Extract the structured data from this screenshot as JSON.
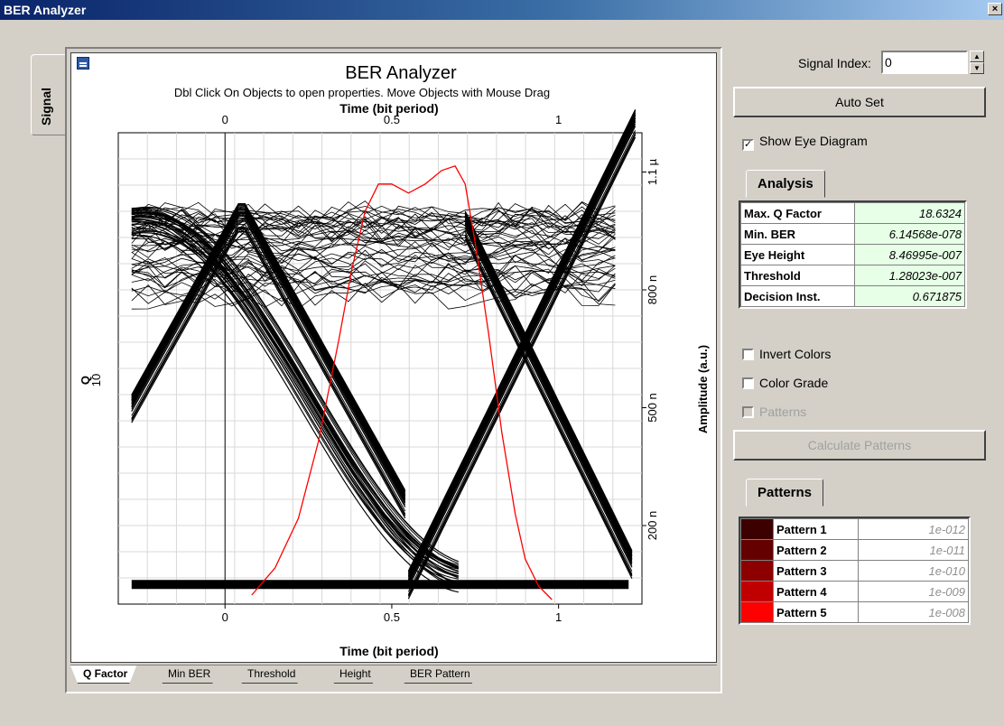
{
  "window": {
    "title": "BER Analyzer",
    "close_glyph": "×"
  },
  "side_tab": {
    "label": "Signal"
  },
  "chart_data": {
    "type": "line",
    "title": "BER Analyzer",
    "subtitle": "Dbl Click On Objects to open properties.  Move Objects with Mouse Drag",
    "x_axis": {
      "label": "Time (bit period)",
      "range": [
        -0.32,
        1.25
      ],
      "ticks": [
        "0",
        "0.5",
        "1"
      ]
    },
    "x_axis_top": {
      "label": "Time (bit period)",
      "ticks": [
        "0",
        "0.5",
        "1"
      ]
    },
    "y_axis_left": {
      "label": "Q",
      "ticks": [
        "10"
      ]
    },
    "y_axis_right": {
      "label": "Amplitude (a.u.)",
      "range": [
        0,
        1.2e-06
      ],
      "ticks": [
        "200 n",
        "500 n",
        "800 n",
        "1.1 µ"
      ]
    },
    "grid": true,
    "series": [
      {
        "name": "Q factor",
        "color": "#ff0000",
        "x": [
          0.08,
          0.15,
          0.22,
          0.28,
          0.34,
          0.38,
          0.42,
          0.46,
          0.5,
          0.55,
          0.6,
          0.65,
          0.69,
          0.72,
          0.75,
          0.79,
          0.83,
          0.87,
          0.9,
          0.94,
          0.98
        ],
        "y": [
          0.02,
          0.08,
          0.19,
          0.36,
          0.58,
          0.74,
          0.87,
          0.93,
          0.93,
          0.91,
          0.93,
          0.96,
          0.97,
          0.93,
          0.8,
          0.6,
          0.38,
          0.2,
          0.1,
          0.04,
          0.01
        ]
      }
    ],
    "eye_levels": {
      "high": 1e-06,
      "low": 5e-08,
      "crossing": 5.2e-07
    }
  },
  "bottom_tabs": [
    "Q Factor",
    "Min BER",
    "Threshold",
    "Height",
    "BER Pattern"
  ],
  "right_panel": {
    "signal_index_label": "Signal Index:",
    "signal_index_value": "0",
    "spin_up_glyph": "▲",
    "spin_down_glyph": "▼",
    "auto_set_label": "Auto Set",
    "show_eye_label": "Show Eye Diagram",
    "show_eye_checked": "✓",
    "analysis_tab": "Analysis",
    "analysis": [
      {
        "label": "Max. Q Factor",
        "value": "18.6324"
      },
      {
        "label": "Min. BER",
        "value": "6.14568e-078"
      },
      {
        "label": "Eye Height",
        "value": "8.46995e-007"
      },
      {
        "label": "Threshold",
        "value": "1.28023e-007"
      },
      {
        "label": "Decision Inst.",
        "value": "0.671875"
      }
    ],
    "invert_colors_label": "Invert Colors",
    "color_grade_label": "Color Grade",
    "patterns_check_label": "Patterns",
    "calculate_patterns_label": "Calculate Patterns",
    "patterns_tab": "Patterns",
    "patterns": [
      {
        "label": "Pattern 1",
        "value": "1e-012",
        "color": "#3c0000"
      },
      {
        "label": "Pattern 2",
        "value": "1e-011",
        "color": "#640000"
      },
      {
        "label": "Pattern 3",
        "value": "1e-010",
        "color": "#8c0000"
      },
      {
        "label": "Pattern 4",
        "value": "1e-009",
        "color": "#c00000"
      },
      {
        "label": "Pattern 5",
        "value": "1e-008",
        "color": "#ff0000"
      }
    ]
  }
}
